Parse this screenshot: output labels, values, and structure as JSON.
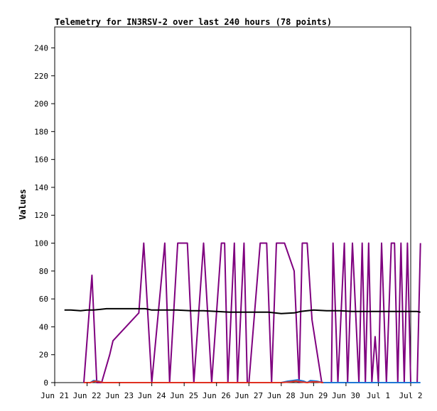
{
  "chart_data": {
    "type": "line",
    "title": "Telemetry for IN3RSV-2 over last 240 hours (78 points)",
    "xlabel": "",
    "ylabel": "Values",
    "xlim": [
      "Jun 21",
      "Jul 2"
    ],
    "ylim": [
      0,
      255
    ],
    "x_ticks": [
      "Jun 21",
      "Jun 22",
      "Jun 23",
      "Jun 24",
      "Jun 25",
      "Jun 26",
      "Jun 27",
      "Jun 28",
      "Jun 29",
      "Jun 30",
      "Jul 1",
      "Jul 2"
    ],
    "y_ticks": [
      0,
      20,
      40,
      60,
      80,
      100,
      120,
      140,
      160,
      180,
      200,
      220,
      240
    ],
    "grid": false,
    "legend": "none",
    "colors": {
      "purple": "#7f007f",
      "black": "#000000",
      "blue": "#1f77d4",
      "red": "#e03020"
    },
    "series": [
      {
        "color": "#7f007f",
        "x": [
          21.9,
          22.15,
          22.3,
          22.45,
          22.7,
          22.8,
          23.6,
          23.75,
          24.0,
          24.4,
          24.55,
          24.8,
          25.1,
          25.3,
          25.6,
          25.85,
          26.15,
          26.25,
          26.35,
          26.55,
          26.65,
          26.85,
          26.95,
          27.0,
          27.35,
          27.55,
          27.7,
          27.85,
          28.1,
          28.4,
          28.55,
          28.65,
          28.8,
          28.95,
          29.25,
          29.55,
          29.6,
          29.75,
          29.95,
          30.05,
          30.2,
          30.4,
          30.5,
          30.6,
          30.7,
          30.8,
          30.9,
          31.0,
          31.1,
          31.25,
          31.4,
          31.5,
          31.6,
          31.7,
          31.8,
          31.9,
          32.0,
          32.2,
          32.3
        ],
        "y": [
          0,
          77,
          0,
          0,
          20,
          30,
          50,
          100,
          0,
          100,
          0,
          100,
          100,
          0,
          100,
          0,
          100,
          100,
          0,
          100,
          0,
          100,
          0,
          0,
          100,
          100,
          0,
          100,
          100,
          80,
          0,
          100,
          100,
          45,
          0,
          0,
          100,
          0,
          100,
          0,
          100,
          0,
          100,
          0,
          100,
          0,
          33,
          0,
          100,
          0,
          100,
          100,
          0,
          100,
          0,
          100,
          0,
          0,
          100
        ]
      },
      {
        "color": "#000000",
        "x": [
          21.3,
          21.5,
          21.8,
          22.0,
          22.2,
          22.4,
          22.6,
          23.0,
          23.4,
          23.8,
          24.0,
          24.4,
          24.8,
          25.2,
          25.6,
          26.0,
          26.4,
          26.8,
          27.2,
          27.6,
          28.0,
          28.4,
          28.6,
          29.0,
          29.4,
          29.8,
          30.2,
          30.6,
          31.0,
          31.4,
          31.8,
          32.0,
          32.2,
          32.3
        ],
        "y": [
          52,
          52,
          51.5,
          52,
          52,
          52.5,
          53,
          53,
          53,
          53,
          52,
          52,
          52,
          51.5,
          51.5,
          51,
          50.5,
          50.5,
          50.5,
          50.5,
          49.5,
          50,
          51,
          52,
          51.5,
          51.5,
          51,
          51,
          51,
          51,
          51,
          51,
          51,
          50.5
        ]
      },
      {
        "color": "#1f77d4",
        "x": [
          21.9,
          22.1,
          22.2,
          22.35,
          22.5,
          23.0,
          24.0,
          25.0,
          26.0,
          27.0,
          28.0,
          28.2,
          28.35,
          28.5,
          28.7,
          28.8,
          28.9,
          29.1,
          29.3,
          30.0,
          31.0,
          32.3
        ],
        "y": [
          0,
          0,
          1.5,
          1,
          0,
          0,
          0,
          0,
          0,
          0,
          0,
          1,
          1.5,
          2,
          1,
          0,
          1.5,
          1,
          0,
          0,
          0,
          0
        ]
      },
      {
        "color": "#e03020",
        "x": [
          21.9,
          22.1,
          22.25,
          22.4,
          22.5,
          28.0,
          28.3,
          28.45,
          28.6,
          28.8,
          28.95,
          29.1,
          29.3
        ],
        "y": [
          0,
          0,
          1,
          0.5,
          0,
          0,
          0.5,
          1,
          0.5,
          0,
          0.5,
          0.5,
          0
        ]
      }
    ]
  }
}
